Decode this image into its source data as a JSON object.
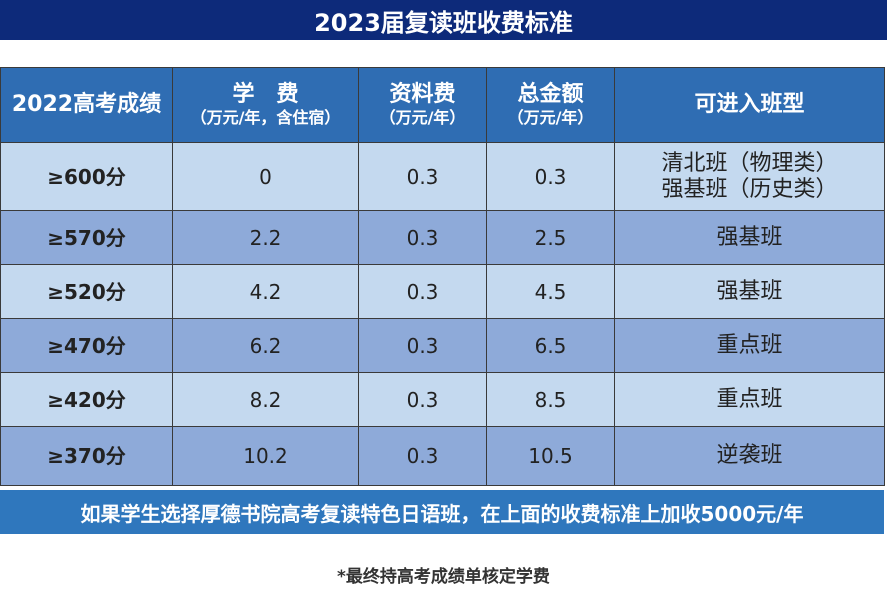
{
  "header": {
    "title": "2023届复读班收费标准"
  },
  "table": {
    "columns": [
      {
        "title": "2022高考成绩"
      },
      {
        "title": "学　费",
        "sub": "（万元/年，含住宿）"
      },
      {
        "title": "资料费",
        "sub": "（万元/年）"
      },
      {
        "title": "总金额",
        "sub": "（万元/年）"
      },
      {
        "title": "可进入班型"
      }
    ],
    "rows": [
      {
        "score": "≥600分",
        "tuition": "0",
        "materials": "0.3",
        "total": "0.3",
        "classes": [
          "清北班（物理类）",
          "强基班（历史类）"
        ]
      },
      {
        "score": "≥570分",
        "tuition": "2.2",
        "materials": "0.3",
        "total": "2.5",
        "classes": [
          "强基班"
        ]
      },
      {
        "score": "≥520分",
        "tuition": "4.2",
        "materials": "0.3",
        "total": "4.5",
        "classes": [
          "强基班"
        ]
      },
      {
        "score": "≥470分",
        "tuition": "6.2",
        "materials": "0.3",
        "total": "6.5",
        "classes": [
          "重点班"
        ]
      },
      {
        "score": "≥420分",
        "tuition": "8.2",
        "materials": "0.3",
        "total": "8.5",
        "classes": [
          "重点班"
        ]
      },
      {
        "score": "≥370分",
        "tuition": "10.2",
        "materials": "0.3",
        "total": "10.5",
        "classes": [
          "逆袭班"
        ]
      }
    ]
  },
  "banner": "如果学生选择厚德书院高考复读特色日语班，在上面的收费标准上加收5000元/年",
  "footnote": "*最终持高考成绩单核定学费"
}
